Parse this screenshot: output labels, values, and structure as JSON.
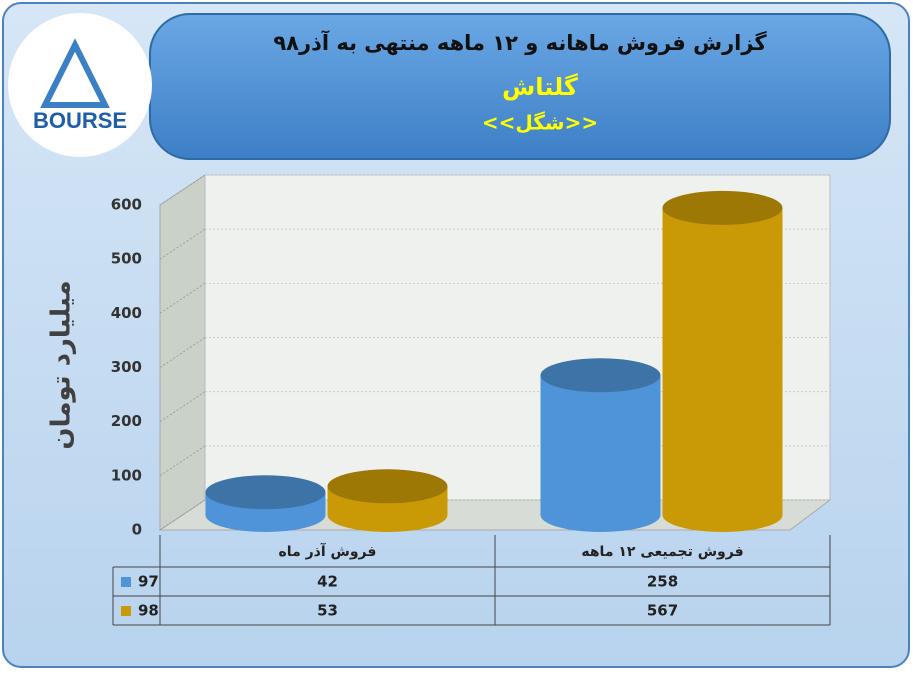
{
  "logo_text": "BOURSE",
  "chart_data": {
    "type": "bar3d",
    "title": "گزارش فروش ماهانه و ۱۲ ماهه منتهی به آذر۹۸",
    "subtitle": "گلتاش",
    "symbol": "<<شگل>>",
    "y_label": "میلیارد تومان",
    "categories": [
      "فروش آذر  ماه",
      "فروش تجمیعی ۱۲ ماهه"
    ],
    "series": [
      {
        "name": "97",
        "color": "#4f94d8",
        "values": [
          42,
          258
        ]
      },
      {
        "name": "98",
        "color": "#c99a06",
        "values": [
          53,
          567
        ]
      }
    ],
    "ylim": [
      0,
      600
    ],
    "yticks": [
      0,
      100,
      200,
      300,
      400,
      500,
      600
    ],
    "grid": true
  }
}
